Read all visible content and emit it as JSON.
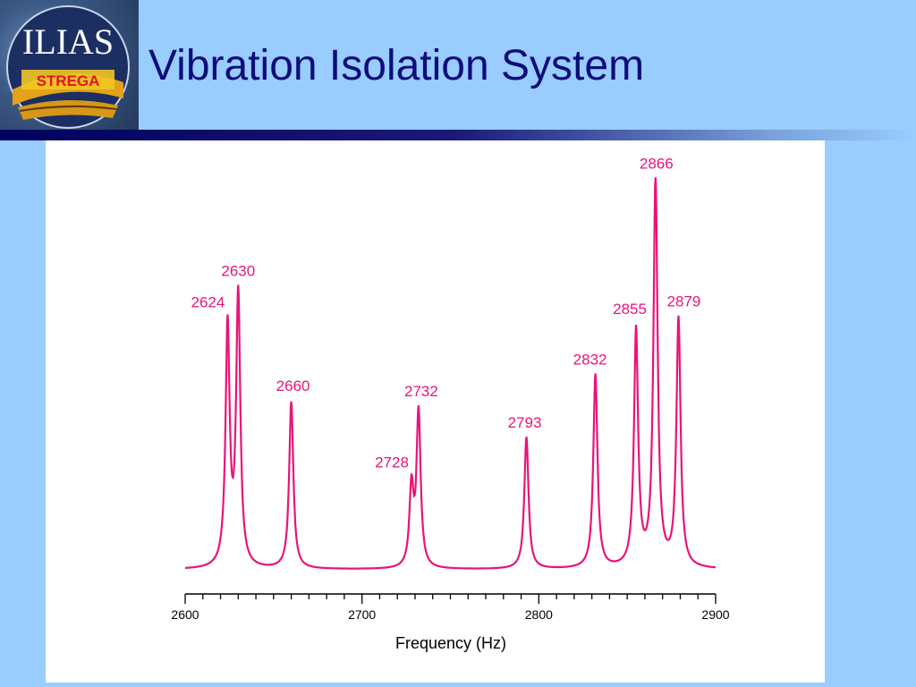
{
  "slide": {
    "title": "Vibration Isolation System",
    "background_color": "#99ccff",
    "title_color": "#0d0d7a"
  },
  "logo": {
    "text_top": "ILIAS",
    "text_bottom": "STREGA",
    "icon": "ilias-strega-logo"
  },
  "chart_data": {
    "type": "line",
    "xlabel": "Frequency (Hz)",
    "ylabel": "",
    "xlim": [
      2600,
      2900
    ],
    "x_ticks": [
      2600,
      2700,
      2800,
      2900
    ],
    "x_tick_labels": [
      "2600",
      "2700",
      "2800",
      "2900"
    ],
    "x_minor_step": 10,
    "grid": false,
    "line_color": "#e8147a",
    "baseline": 0.04,
    "peaks": [
      {
        "x": 2624,
        "height": 0.62,
        "label": "2624"
      },
      {
        "x": 2630,
        "height": 0.7,
        "label": "2630"
      },
      {
        "x": 2660,
        "height": 0.43,
        "label": "2660"
      },
      {
        "x": 2728,
        "height": 0.2,
        "label": "2728"
      },
      {
        "x": 2732,
        "height": 0.4,
        "label": "2732"
      },
      {
        "x": 2793,
        "height": 0.34,
        "label": "2793"
      },
      {
        "x": 2832,
        "height": 0.5,
        "label": "2832"
      },
      {
        "x": 2855,
        "height": 0.61,
        "label": "2855"
      },
      {
        "x": 2866,
        "height": 1.0,
        "label": "2866"
      },
      {
        "x": 2879,
        "height": 0.64,
        "label": "2879"
      }
    ]
  }
}
